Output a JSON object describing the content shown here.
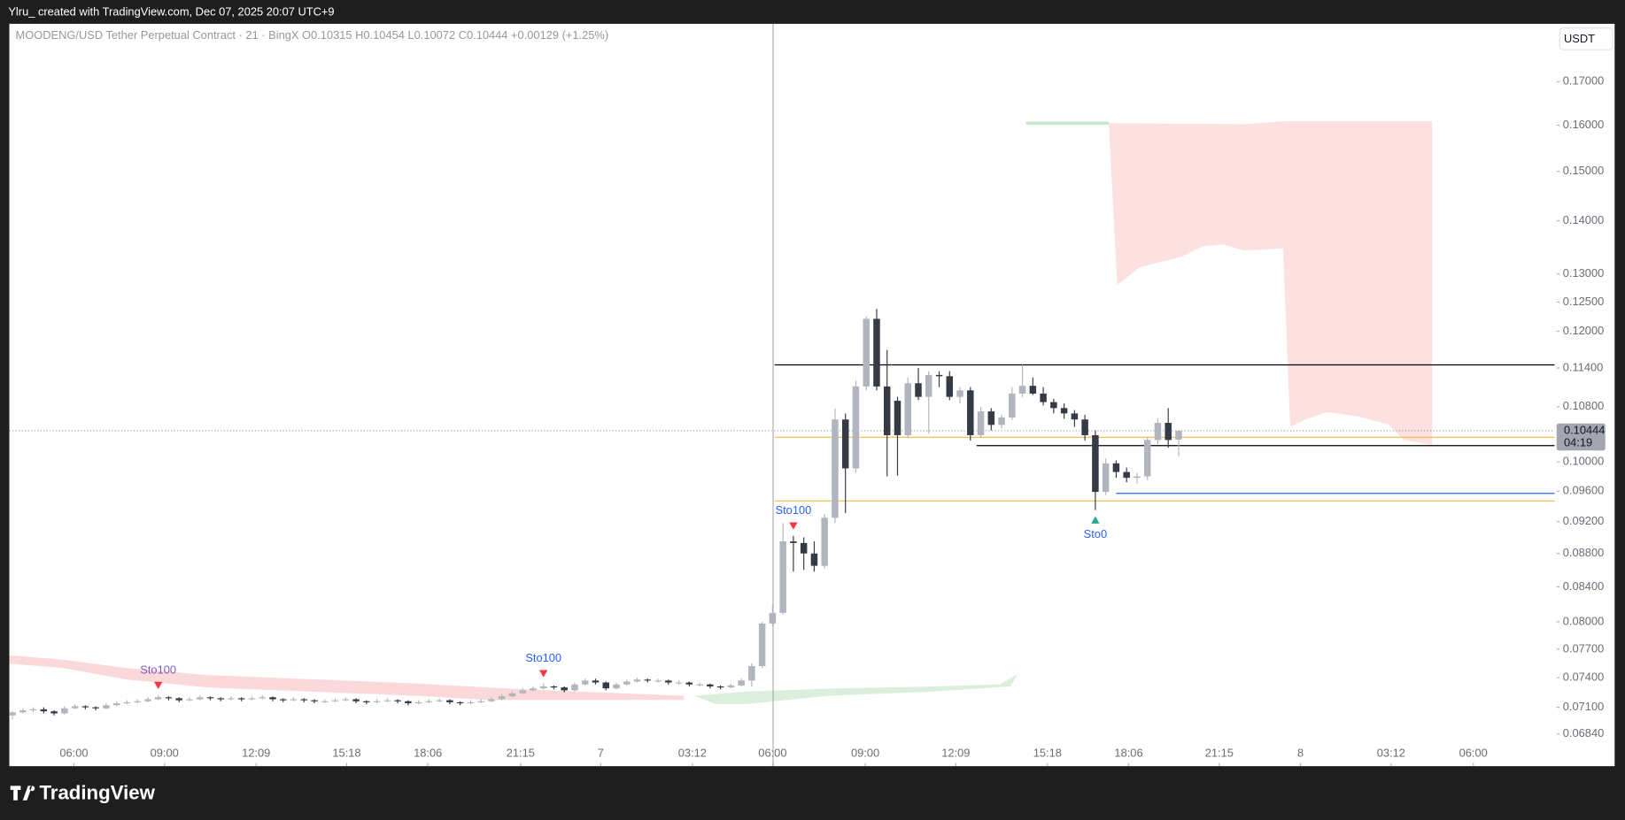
{
  "header": {
    "credit": "Ylru_ created with TradingView.com, Dec 07, 2025 20:07 UTC+9",
    "logo": "TradingView"
  },
  "chart_data": {
    "type": "candlestick",
    "legend": {
      "symbol": "MOODENG/USD Tether Perpetual Contract · 21 · BingX",
      "values": [
        "O0.10315",
        "H0.10454",
        "L0.10072",
        "C0.10444",
        "+0.00129 (+1.25%)"
      ]
    },
    "currency": "USDT",
    "countdown": "04:19",
    "log_scale": true,
    "up_color": "#b2b5be",
    "down_color": "#363a45",
    "ohlc": [
      [
        0.0702,
        0.0706,
        0.0698,
        0.0705
      ],
      [
        0.0705,
        0.0709,
        0.0704,
        0.0707
      ],
      [
        0.0707,
        0.071,
        0.0705,
        0.0708
      ],
      [
        0.0708,
        0.071,
        0.0704,
        0.0706
      ],
      [
        0.0706,
        0.0707,
        0.0702,
        0.0704
      ],
      [
        0.0704,
        0.0711,
        0.0703,
        0.0709
      ],
      [
        0.0709,
        0.0713,
        0.0708,
        0.0711
      ],
      [
        0.0711,
        0.0712,
        0.0708,
        0.071
      ],
      [
        0.071,
        0.0711,
        0.0707,
        0.0709
      ],
      [
        0.0709,
        0.0714,
        0.0708,
        0.0712
      ],
      [
        0.0712,
        0.0716,
        0.0711,
        0.0714
      ],
      [
        0.0714,
        0.0717,
        0.0713,
        0.0715
      ],
      [
        0.0715,
        0.0718,
        0.0714,
        0.0716
      ],
      [
        0.0716,
        0.072,
        0.0715,
        0.0718
      ],
      [
        0.0718,
        0.0722,
        0.0717,
        0.072
      ],
      [
        0.072,
        0.0721,
        0.0717,
        0.0719
      ],
      [
        0.0719,
        0.072,
        0.0715,
        0.0717
      ],
      [
        0.0717,
        0.072,
        0.0716,
        0.0718
      ],
      [
        0.0718,
        0.0722,
        0.0717,
        0.072
      ],
      [
        0.072,
        0.0721,
        0.0717,
        0.0719
      ],
      [
        0.0719,
        0.072,
        0.0716,
        0.0718
      ],
      [
        0.0718,
        0.0721,
        0.0717,
        0.0719
      ],
      [
        0.0719,
        0.072,
        0.0716,
        0.0718
      ],
      [
        0.0718,
        0.0721,
        0.0717,
        0.0719
      ],
      [
        0.0719,
        0.0722,
        0.0718,
        0.072
      ],
      [
        0.072,
        0.0721,
        0.0716,
        0.0718
      ],
      [
        0.0718,
        0.0719,
        0.0715,
        0.0717
      ],
      [
        0.0717,
        0.072,
        0.0716,
        0.0718
      ],
      [
        0.0718,
        0.0719,
        0.0715,
        0.0717
      ],
      [
        0.0717,
        0.0718,
        0.0714,
        0.0716
      ],
      [
        0.0716,
        0.0718,
        0.0714,
        0.0716
      ],
      [
        0.0716,
        0.0719,
        0.0715,
        0.0717
      ],
      [
        0.0717,
        0.072,
        0.0716,
        0.0718
      ],
      [
        0.0718,
        0.0719,
        0.0714,
        0.0716
      ],
      [
        0.0716,
        0.0717,
        0.0713,
        0.0715
      ],
      [
        0.0715,
        0.0718,
        0.0714,
        0.0716
      ],
      [
        0.0716,
        0.0719,
        0.0715,
        0.0717
      ],
      [
        0.0717,
        0.0718,
        0.0714,
        0.0716
      ],
      [
        0.0716,
        0.0717,
        0.0712,
        0.0714
      ],
      [
        0.0714,
        0.0717,
        0.0713,
        0.0715
      ],
      [
        0.0715,
        0.0718,
        0.0714,
        0.0716
      ],
      [
        0.0716,
        0.0719,
        0.0715,
        0.0717
      ],
      [
        0.0717,
        0.0718,
        0.0713,
        0.0715
      ],
      [
        0.0715,
        0.0716,
        0.0712,
        0.0714
      ],
      [
        0.0714,
        0.0717,
        0.0713,
        0.0715
      ],
      [
        0.0715,
        0.0718,
        0.0714,
        0.0716
      ],
      [
        0.0716,
        0.072,
        0.0715,
        0.0718
      ],
      [
        0.0718,
        0.0723,
        0.0717,
        0.0721
      ],
      [
        0.0721,
        0.0726,
        0.072,
        0.0724
      ],
      [
        0.0724,
        0.0729,
        0.0723,
        0.0727
      ],
      [
        0.0727,
        0.0731,
        0.0726,
        0.0729
      ],
      [
        0.0729,
        0.0734,
        0.0728,
        0.0731
      ],
      [
        0.0731,
        0.0732,
        0.0728,
        0.073
      ],
      [
        0.073,
        0.0731,
        0.0725,
        0.0727
      ],
      [
        0.0727,
        0.0735,
        0.0726,
        0.0733
      ],
      [
        0.0733,
        0.0739,
        0.0732,
        0.0737
      ],
      [
        0.0737,
        0.0739,
        0.0733,
        0.0735
      ],
      [
        0.0735,
        0.0736,
        0.0727,
        0.0729
      ],
      [
        0.0729,
        0.0735,
        0.0728,
        0.0733
      ],
      [
        0.0733,
        0.0738,
        0.0732,
        0.0736
      ],
      [
        0.0736,
        0.074,
        0.0735,
        0.0738
      ],
      [
        0.0738,
        0.0739,
        0.0735,
        0.0737
      ],
      [
        0.0737,
        0.0739,
        0.0735,
        0.0737
      ],
      [
        0.0737,
        0.0738,
        0.0733,
        0.0735
      ],
      [
        0.0735,
        0.0737,
        0.0733,
        0.0735
      ],
      [
        0.0735,
        0.0736,
        0.0731,
        0.0733
      ],
      [
        0.0733,
        0.0735,
        0.0731,
        0.0733
      ],
      [
        0.0733,
        0.0734,
        0.0729,
        0.0731
      ],
      [
        0.0731,
        0.0732,
        0.0728,
        0.073
      ],
      [
        0.073,
        0.0734,
        0.0729,
        0.0732
      ],
      [
        0.0732,
        0.0739,
        0.0731,
        0.0737
      ],
      [
        0.0737,
        0.0755,
        0.0731,
        0.0752
      ],
      [
        0.0752,
        0.08,
        0.075,
        0.0798
      ],
      [
        0.0798,
        0.082,
        0.0795,
        0.081
      ],
      [
        0.081,
        0.0918,
        0.0808,
        0.0895
      ],
      [
        0.0895,
        0.0902,
        0.0858,
        0.0893
      ],
      [
        0.0893,
        0.09,
        0.086,
        0.088
      ],
      [
        0.088,
        0.0895,
        0.0858,
        0.0865
      ],
      [
        0.0865,
        0.093,
        0.0862,
        0.0925
      ],
      [
        0.0925,
        0.1077,
        0.0918,
        0.1061
      ],
      [
        0.1061,
        0.107,
        0.0931,
        0.0991
      ],
      [
        0.0991,
        0.112,
        0.0985,
        0.1111
      ],
      [
        0.1111,
        0.1225,
        0.1105,
        0.1221
      ],
      [
        0.1221,
        0.1238,
        0.1105,
        0.1111
      ],
      [
        0.1111,
        0.1169,
        0.098,
        0.1038
      ],
      [
        0.1089,
        0.1095,
        0.0981,
        0.1038
      ],
      [
        0.1038,
        0.1125,
        0.1035,
        0.1116
      ],
      [
        0.1116,
        0.114,
        0.109,
        0.1095
      ],
      [
        0.1095,
        0.1135,
        0.104,
        0.1129
      ],
      [
        0.1129,
        0.1135,
        0.111,
        0.1127
      ],
      [
        0.1127,
        0.1135,
        0.109,
        0.1095
      ],
      [
        0.1095,
        0.111,
        0.1085,
        0.1105
      ],
      [
        0.1105,
        0.111,
        0.103,
        0.1038
      ],
      [
        0.1038,
        0.108,
        0.1035,
        0.1073
      ],
      [
        0.1073,
        0.1078,
        0.1045,
        0.1053
      ],
      [
        0.1053,
        0.1068,
        0.1048,
        0.1064
      ],
      [
        0.1064,
        0.111,
        0.106,
        0.11
      ],
      [
        0.11,
        0.1145,
        0.1095,
        0.1112
      ],
      [
        0.1112,
        0.1125,
        0.1098,
        0.11
      ],
      [
        0.11,
        0.111,
        0.1082,
        0.1087
      ],
      [
        0.1087,
        0.1092,
        0.107,
        0.1078
      ],
      [
        0.1078,
        0.1085,
        0.1062,
        0.107
      ],
      [
        0.107,
        0.1075,
        0.105,
        0.1061
      ],
      [
        0.1061,
        0.1068,
        0.103,
        0.1038
      ],
      [
        0.1038,
        0.1045,
        0.0935,
        0.0959
      ],
      [
        0.0959,
        0.1005,
        0.0955,
        0.0998
      ],
      [
        0.0998,
        0.1002,
        0.0978,
        0.0986
      ],
      [
        0.0986,
        0.0992,
        0.0972,
        0.0978
      ],
      [
        0.0978,
        0.0985,
        0.097,
        0.098
      ],
      [
        0.098,
        0.1035,
        0.0975,
        0.1031
      ],
      [
        0.1031,
        0.1063,
        0.1025,
        0.1056
      ],
      [
        0.1056,
        0.1078,
        0.102,
        0.1031
      ],
      [
        0.10315,
        0.10454,
        0.10072,
        0.10444
      ]
    ],
    "xlim": [
      -0.3,
      148.1
    ],
    "xticks": [
      {
        "value": 5.9,
        "label": "06:00"
      },
      {
        "value": 14.6,
        "label": "09:00"
      },
      {
        "value": 23.4,
        "label": "12:09"
      },
      {
        "value": 32.1,
        "label": "15:18"
      },
      {
        "value": 39.9,
        "label": "18:06"
      },
      {
        "value": 48.8,
        "label": "21:15"
      },
      {
        "value": 56.5,
        "label": "7"
      },
      {
        "value": 65.3,
        "label": "03:12"
      },
      {
        "value": 73.0,
        "label": "06:00"
      },
      {
        "value": 81.9,
        "label": "09:00"
      },
      {
        "value": 90.6,
        "label": "12:09"
      },
      {
        "value": 99.4,
        "label": "15:18"
      },
      {
        "value": 107.2,
        "label": "18:06"
      },
      {
        "value": 115.9,
        "label": "21:15"
      },
      {
        "value": 123.7,
        "label": "8"
      },
      {
        "value": 132.4,
        "label": "03:12"
      },
      {
        "value": 140.3,
        "label": "06:00"
      }
    ],
    "ylim": [
      0.0654,
      0.1843
    ],
    "yticks": [
      {
        "value": 0.0684,
        "label": "0.06840"
      },
      {
        "value": 0.071,
        "label": "0.07100"
      },
      {
        "value": 0.074,
        "label": "0.07400"
      },
      {
        "value": 0.077,
        "label": "0.07700"
      },
      {
        "value": 0.08,
        "label": "0.08000"
      },
      {
        "value": 0.084,
        "label": "0.08400"
      },
      {
        "value": 0.088,
        "label": "0.08800"
      },
      {
        "value": 0.092,
        "label": "0.09200"
      },
      {
        "value": 0.096,
        "label": "0.09600"
      },
      {
        "value": 0.1,
        "label": "0.10000"
      },
      {
        "value": 0.108,
        "label": "0.10800"
      },
      {
        "value": 0.114,
        "label": "0.11400"
      },
      {
        "value": 0.12,
        "label": "0.12000"
      },
      {
        "value": 0.125,
        "label": "0.12500"
      },
      {
        "value": 0.13,
        "label": "0.13000"
      },
      {
        "value": 0.14,
        "label": "0.14000"
      },
      {
        "value": 0.15,
        "label": "0.15000"
      },
      {
        "value": 0.16,
        "label": "0.16000"
      },
      {
        "value": 0.17,
        "label": "0.17000"
      }
    ],
    "levels": [
      {
        "price": 0.1145,
        "from": 73.2,
        "color": "#000000"
      },
      {
        "price": 0.1023,
        "from": 92.6,
        "color": "#000000"
      },
      {
        "price": 0.1035,
        "from": 73.2,
        "color": "#f0b840"
      },
      {
        "price": 0.0947,
        "from": 73.2,
        "color": "#f0b840"
      },
      {
        "price": 0.0957,
        "from": 106,
        "color": "#2962ff"
      }
    ],
    "annotations": [
      {
        "text": "Sto100",
        "at": 14,
        "side": "above",
        "color": "#7e57c2"
      },
      {
        "text": "Sto100",
        "at": 51,
        "side": "above",
        "color": "#2962ff"
      },
      {
        "text": "Sto100",
        "at": 75,
        "side": "above",
        "color": "#2962ff"
      },
      {
        "text": "Sto0",
        "at": 104,
        "side": "below",
        "color": "#2962ff"
      }
    ]
  }
}
